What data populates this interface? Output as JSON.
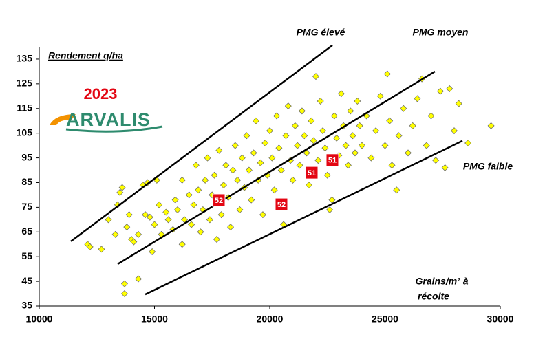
{
  "chart_data": {
    "type": "scatter",
    "title": "2023",
    "logo": "ARVALIS",
    "y_label": "Rendement q/ha",
    "x_label": [
      "Grains/m² à",
      "récolte"
    ],
    "xlim": [
      10000,
      30000
    ],
    "xticks": [
      10000,
      15000,
      20000,
      25000,
      30000
    ],
    "ylim": [
      35,
      140
    ],
    "yticks": [
      35,
      45,
      55,
      65,
      75,
      85,
      95,
      105,
      115,
      125,
      135
    ],
    "series": [
      {
        "color": "#ffff00",
        "x": [
          12100,
          12200,
          12700,
          13000,
          13300,
          13400,
          13500,
          13600,
          13700,
          13700,
          13800,
          13900,
          14000,
          14100,
          14300,
          14300,
          14500,
          14600,
          14700,
          14800,
          14900,
          15000,
          15100,
          15200,
          15300,
          15500,
          15600,
          15800,
          15900,
          16000,
          16200,
          16200,
          16300,
          16500,
          16600,
          16700,
          16800,
          16900,
          17000,
          17100,
          17200,
          17300,
          17400,
          17500,
          17600,
          17700,
          17800,
          17900,
          18000,
          18100,
          18200,
          18300,
          18400,
          18500,
          18600,
          18700,
          18800,
          18900,
          19000,
          19100,
          19200,
          19300,
          19400,
          19500,
          19600,
          19700,
          19800,
          19900,
          20000,
          20100,
          20200,
          20300,
          20400,
          20500,
          20600,
          20700,
          20800,
          20900,
          21000,
          21100,
          21200,
          21300,
          21400,
          21500,
          21600,
          21700,
          21800,
          21900,
          22000,
          22100,
          22200,
          22300,
          22400,
          22500,
          22600,
          22700,
          22800,
          22900,
          23000,
          23100,
          23200,
          23300,
          23400,
          23500,
          23600,
          23700,
          23800,
          23900,
          24000,
          24200,
          24400,
          24600,
          24800,
          25000,
          25100,
          25200,
          25300,
          25500,
          25600,
          25800,
          26000,
          26200,
          26400,
          26600,
          26800,
          27000,
          27200,
          27400,
          27600,
          27800,
          28000,
          28200,
          28600,
          29600
        ],
        "values": [
          60,
          59,
          58,
          70,
          64,
          76,
          81,
          83,
          44,
          40,
          67,
          72,
          62,
          61,
          46,
          64,
          84,
          72,
          85,
          71,
          57,
          68,
          86,
          76,
          64,
          73,
          70,
          66,
          78,
          74,
          60,
          86,
          70,
          80,
          68,
          76,
          92,
          82,
          65,
          74,
          86,
          95,
          70,
          80,
          88,
          62,
          98,
          72,
          84,
          92,
          79,
          67,
          90,
          100,
          86,
          74,
          95,
          83,
          104,
          90,
          78,
          97,
          110,
          86,
          93,
          72,
          101,
          88,
          106,
          95,
          82,
          112,
          99,
          90,
          68,
          104,
          116,
          94,
          86,
          108,
          100,
          92,
          114,
          104,
          97,
          84,
          110,
          102,
          128,
          94,
          118,
          106,
          99,
          88,
          74,
          78,
          112,
          103,
          96,
          121,
          108,
          100,
          92,
          114,
          104,
          97,
          118,
          108,
          100,
          112,
          95,
          106,
          120,
          100,
          129,
          110,
          92,
          82,
          104,
          115,
          97,
          108,
          119,
          127,
          100,
          112,
          94,
          122,
          91,
          123,
          106,
          117,
          101,
          108
        ]
      }
    ],
    "lines": [
      {
        "name": "PMG élevé",
        "x": [
          11373,
          22716
        ],
        "values": [
          61.2,
          140.6
        ]
      },
      {
        "name": "PMG moyen",
        "x": [
          13403,
          27164
        ],
        "values": [
          52.0,
          130.0
        ]
      },
      {
        "name": "PMG faible",
        "x": [
          14597,
          28358
        ],
        "values": [
          39.7,
          101.9
        ]
      }
    ],
    "highlights": {
      "x": [
        17791,
        20507,
        21821,
        22716
      ],
      "values": [
        77.9,
        76.2,
        89.0,
        94.1
      ],
      "labels": [
        "52",
        "52",
        "51",
        "51"
      ]
    }
  }
}
